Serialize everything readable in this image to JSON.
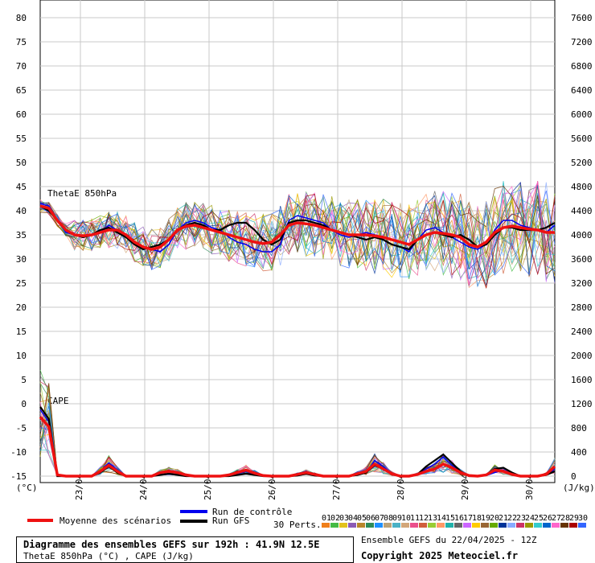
{
  "chart_data": {
    "type": "line",
    "title": "Diagramme des ensembles GEFS sur 192h : 41.9N 12.5E",
    "subtitle": "ThetaE 850hPa (°C) , CAPE (J/kg)",
    "left_axis": {
      "unit": "(°C)",
      "ylim": [
        -15,
        80
      ],
      "ticks": [
        80,
        75,
        70,
        65,
        60,
        55,
        50,
        45,
        40,
        35,
        30,
        25,
        20,
        15,
        10,
        5,
        0,
        -5,
        -10,
        -15
      ]
    },
    "right_axis": {
      "unit": "(J/kg)",
      "ylim": [
        0,
        7600
      ],
      "ticks": [
        7600,
        7200,
        6800,
        6400,
        6000,
        5600,
        5200,
        4800,
        4400,
        4000,
        3600,
        3200,
        2800,
        2400,
        2000,
        1600,
        1200,
        800,
        400,
        0
      ]
    },
    "x_labels": [
      "23/04",
      "24/04",
      "25/04",
      "26/04",
      "27/04",
      "28/04",
      "29/04",
      "30/04"
    ],
    "x_hours": [
      0,
      192
    ],
    "panel_labels": {
      "thetae": "ThetaE 850hPa",
      "cape": "CAPE"
    },
    "series": [
      {
        "name": "Moyenne des scénarios",
        "color": "#ee1111",
        "thetae": [
          41,
          40.5,
          38,
          36,
          35,
          34.8,
          35,
          35.5,
          36,
          36,
          35,
          33.5,
          32.5,
          32,
          32.5,
          34,
          36,
          36.8,
          37,
          36.5,
          36,
          35.5,
          35,
          34.5,
          34,
          33.5,
          33.2,
          33.5,
          35,
          37,
          37.5,
          37.3,
          37,
          36.5,
          36,
          35.5,
          35,
          35,
          35,
          34.8,
          34.5,
          34,
          33.5,
          33,
          34,
          35,
          35.5,
          35.3,
          35,
          34.5,
          33,
          32.5,
          33.5,
          35.5,
          36.5,
          36.8,
          36.5,
          36.2,
          36,
          35.5,
          35.5
        ],
        "cape": [
          980,
          820,
          20,
          0,
          0,
          0,
          0,
          80,
          180,
          80,
          0,
          0,
          0,
          0,
          60,
          80,
          60,
          20,
          0,
          0,
          0,
          0,
          20,
          60,
          100,
          50,
          10,
          0,
          0,
          0,
          30,
          60,
          30,
          0,
          0,
          0,
          0,
          40,
          80,
          200,
          120,
          40,
          0,
          0,
          30,
          80,
          120,
          200,
          140,
          60,
          10,
          0,
          20,
          100,
          80,
          30,
          0,
          0,
          0,
          30,
          160
        ]
      },
      {
        "name": "Run de contrôle",
        "color": "#0000ee",
        "thetae": [
          41.5,
          41,
          38,
          35.5,
          35,
          34.5,
          35,
          35.5,
          37,
          36,
          35,
          33,
          32.5,
          32,
          31.5,
          33,
          36,
          37.5,
          38,
          37.5,
          36.5,
          36,
          34.5,
          33.5,
          33,
          32,
          31.5,
          31.5,
          33,
          38,
          39,
          38.5,
          38,
          37.5,
          36,
          35,
          34.5,
          35,
          35.5,
          35,
          34,
          33,
          32.5,
          31.5,
          34,
          36,
          36.5,
          35.5,
          34.5,
          33.5,
          32.5,
          32,
          33,
          36,
          38,
          38,
          37,
          36.5,
          36,
          35.5,
          37
        ],
        "cape": [
          1100,
          900,
          0,
          0,
          0,
          0,
          0,
          80,
          220,
          100,
          0,
          0,
          0,
          0,
          20,
          30,
          20,
          0,
          0,
          0,
          0,
          0,
          10,
          40,
          80,
          30,
          0,
          0,
          0,
          0,
          40,
          80,
          20,
          0,
          0,
          0,
          0,
          20,
          60,
          260,
          160,
          40,
          0,
          0,
          20,
          120,
          200,
          320,
          180,
          60,
          0,
          0,
          10,
          60,
          100,
          40,
          0,
          0,
          0,
          20,
          120
        ]
      },
      {
        "name": "Run GFS",
        "color": "#000000",
        "thetae": [
          41,
          40,
          38,
          36,
          35,
          34.5,
          35,
          36,
          36.5,
          35.5,
          34.5,
          33,
          32,
          32.5,
          33,
          34,
          36,
          37,
          37.5,
          37,
          36,
          36,
          37,
          37.5,
          37.5,
          36,
          34,
          33,
          34,
          37.5,
          38,
          38,
          37.5,
          37,
          36,
          35.5,
          35,
          34.5,
          34,
          34.5,
          34,
          33,
          32.5,
          32,
          34,
          35,
          35.5,
          35,
          34.5,
          35,
          34,
          32.5,
          33,
          35,
          36.5,
          36.5,
          36,
          36,
          36,
          36.5,
          37.5
        ],
        "cape": [
          1150,
          950,
          0,
          0,
          0,
          0,
          0,
          60,
          160,
          60,
          0,
          0,
          0,
          0,
          20,
          40,
          20,
          0,
          0,
          0,
          0,
          0,
          0,
          20,
          40,
          20,
          0,
          0,
          0,
          0,
          10,
          40,
          10,
          0,
          0,
          0,
          0,
          20,
          60,
          180,
          120,
          40,
          0,
          0,
          30,
          160,
          260,
          360,
          220,
          80,
          0,
          0,
          20,
          120,
          140,
          60,
          0,
          0,
          0,
          20,
          80
        ]
      }
    ],
    "legend": {
      "mean": "Moyenne des scénarios",
      "control": "Run de contrôle",
      "gfs": "Run GFS",
      "perts": "30 Perts.",
      "pert_labels": [
        "01",
        "02",
        "03",
        "04",
        "05",
        "06",
        "07",
        "08",
        "09",
        "10",
        "11",
        "12",
        "13",
        "14",
        "15",
        "16",
        "17",
        "18",
        "19",
        "20",
        "21",
        "22",
        "23",
        "24",
        "25",
        "26",
        "27",
        "28",
        "29",
        "30"
      ],
      "pert_colors": [
        "#ef7f1a",
        "#44bb44",
        "#e2c21b",
        "#8b5ab5",
        "#b8862b",
        "#2e8b57",
        "#1e90ff",
        "#bba277",
        "#4bb2c5",
        "#d2a679",
        "#eb4f8b",
        "#d05f3c",
        "#99cc33",
        "#ff9966",
        "#20b2aa",
        "#666666",
        "#cc66ff",
        "#ffcc00",
        "#996633",
        "#66aa00",
        "#003399",
        "#88aaff",
        "#cc3366",
        "#999900",
        "#33cccc",
        "#0066cc",
        "#ff66cc",
        "#663300",
        "#aa0000",
        "#3366ff"
      ]
    }
  },
  "footer": {
    "title": "Diagramme des ensembles GEFS sur 192h : 41.9N 12.5E",
    "subtitle": "ThetaE 850hPa (°C) , CAPE (J/kg)",
    "ensemble": "Ensemble GEFS du 22/04/2025 - 12Z",
    "copyright": "Copyright 2025 Meteociel.fr"
  }
}
